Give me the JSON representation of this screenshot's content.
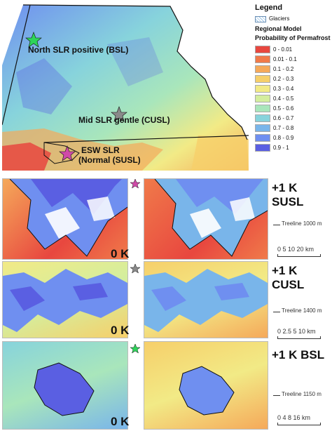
{
  "legend": {
    "title": "Legend",
    "glaciers": "Glaciers",
    "model_title_1": "Regional Model",
    "model_title_2": "Probability of Permafrost",
    "classes": [
      {
        "label": "0 - 0.01",
        "color": "#e8473f"
      },
      {
        "label": "0.01 - 0.1",
        "color": "#f07a4a"
      },
      {
        "label": "0.1 - 0.2",
        "color": "#f5a95a"
      },
      {
        "label": "0.2 - 0.3",
        "color": "#f6cf6a"
      },
      {
        "label": "0.3 - 0.4",
        "color": "#f2ea86"
      },
      {
        "label": "0.4 - 0.5",
        "color": "#d4ee9e"
      },
      {
        "label": "0.5 - 0.6",
        "color": "#a9e6bb"
      },
      {
        "label": "0.6 - 0.7",
        "color": "#87d3dc"
      },
      {
        "label": "0.7 - 0.8",
        "color": "#79b5ea"
      },
      {
        "label": "0.8 - 0.9",
        "color": "#6f8ff0"
      },
      {
        "label": "0.9 - 1",
        "color": "#5a5fe2"
      }
    ]
  },
  "overview": {
    "regions": [
      {
        "label": "North SLR positive (BSL)",
        "star_color": "#2ed45a"
      },
      {
        "label": "Mid SLR gentle (CUSL)",
        "star_color": "#8a8a8a"
      },
      {
        "label_1": "ESW SLR",
        "label_2": "(Normal (SUSL)",
        "star_color": "#d04aa8"
      }
    ]
  },
  "panels": [
    {
      "left": "0 K",
      "right": "+1 K SUSL",
      "treeline": "Treeline 1000 m",
      "scale": "0  5 10     20 km",
      "star_color": "#d04aa8"
    },
    {
      "left": "0 K",
      "right": "+1 K CUSL",
      "treeline": "Treeline 1400 m",
      "scale": "0  2.5  5        10 km",
      "star_color": "#8a8a8a"
    },
    {
      "left": "0 K",
      "right": "+1 K BSL",
      "treeline": "Treeline 1150 m",
      "scale": "0  4  8      16 km",
      "star_color": "#2ed45a"
    }
  ]
}
